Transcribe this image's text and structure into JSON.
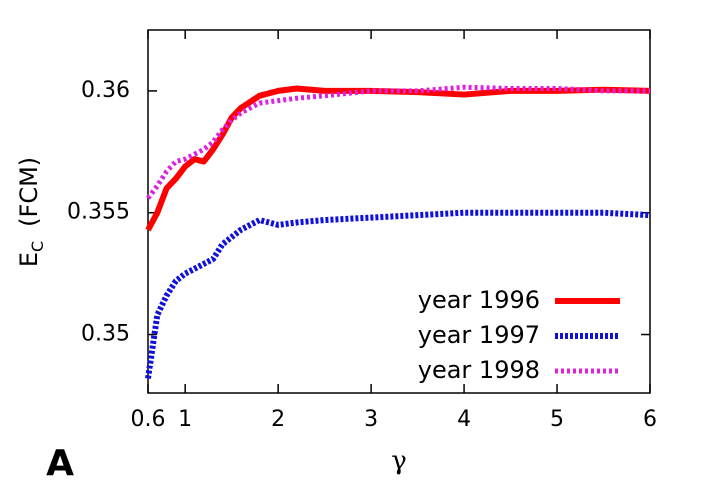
{
  "chart_data": {
    "type": "line",
    "panel_label": "A",
    "x_label": "γ",
    "y_label": {
      "main": "E",
      "sub": "C",
      "unit": "(FCM)"
    },
    "x": [
      0.6,
      0.7,
      0.8,
      0.9,
      1.0,
      1.1,
      1.2,
      1.3,
      1.4,
      1.5,
      1.6,
      1.8,
      2.0,
      2.2,
      2.5,
      3,
      3.5,
      4,
      4.5,
      5,
      5.5,
      6
    ],
    "series": [
      {
        "name": "year 1996",
        "color": "#ff0000",
        "style": "solid",
        "values": [
          0.35429,
          0.355,
          0.356,
          0.3564,
          0.3569,
          0.3572,
          0.3571,
          0.3576,
          0.3582,
          0.3589,
          0.3593,
          0.3598,
          0.36,
          0.3601,
          0.36,
          0.36,
          0.35995,
          0.35985,
          0.36,
          0.36,
          0.36005,
          0.36
        ]
      },
      {
        "name": "year 1997",
        "color": "#1010dd",
        "style": "dotted",
        "values": [
          0.3482,
          0.3508,
          0.3516,
          0.3522,
          0.3525,
          0.3527,
          0.3529,
          0.3531,
          0.3537,
          0.354,
          0.3543,
          0.3547,
          0.3545,
          0.3546,
          0.3547,
          0.3548,
          0.3549,
          0.355,
          0.355,
          0.355,
          0.355,
          0.3549
        ]
      },
      {
        "name": "year 1998",
        "color": "#e020e0",
        "style": "dashed",
        "values": [
          0.3556,
          0.3561,
          0.3567,
          0.3571,
          0.3572,
          0.3574,
          0.3576,
          0.3579,
          0.3584,
          0.3588,
          0.3591,
          0.3595,
          0.3596,
          0.3597,
          0.3598,
          0.36,
          0.36,
          0.36015,
          0.3601,
          0.3601,
          0.36,
          0.36
        ]
      }
    ],
    "xlim": [
      0.6,
      6
    ],
    "xticks": [
      0.6,
      1,
      2,
      3,
      4,
      5,
      6
    ],
    "ylim": [
      0.3476,
      0.3625
    ],
    "yticks": [
      0.35,
      0.355,
      0.36
    ],
    "legend": "lower-right"
  }
}
